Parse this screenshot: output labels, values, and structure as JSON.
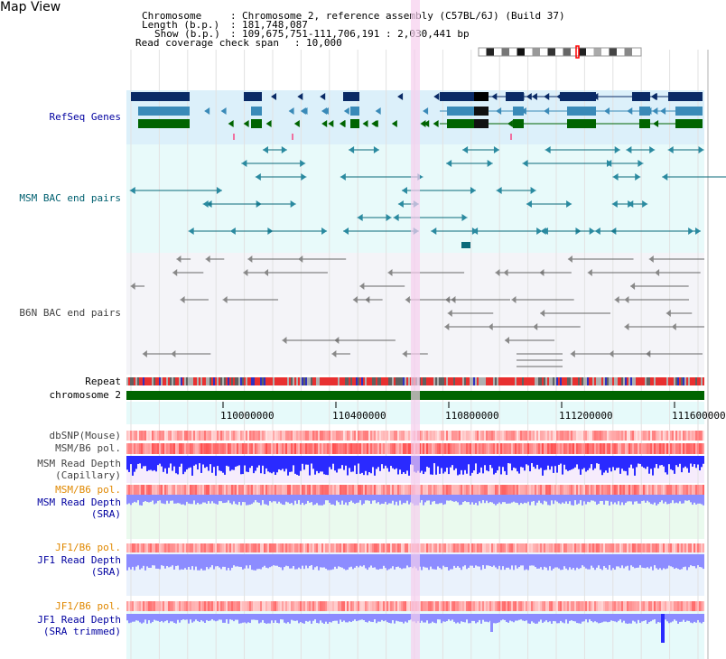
{
  "app": {
    "title": "Map View"
  },
  "header": {
    "chromosome_label": "Chromosome",
    "chromosome_value": "Chromosome 2, reference assembly (C57BL/6J) (Build 37)",
    "length_label": "Length (b.p.)",
    "length_value": "181,748,087",
    "show_label": "Show (b.p.)",
    "show_value": "109,675,751-111,706,191 : 2,030,441 bp",
    "coverage_label": "Read coverage check span",
    "coverage_value": "10,000"
  },
  "tracks": {
    "refseq": "RefSeq Genes",
    "msm_bac": "MSM BAC end pairs",
    "b6n_bac": "B6N BAC end pairs",
    "repeat": "Repeat",
    "chromosome": "chromosome 2",
    "dbsnp": "dbSNP(Mouse)",
    "msm_b6_pol_1": "MSM/B6 pol.",
    "msm_depth_cap_1": "MSM Read Depth",
    "msm_depth_cap_2": "(Capillary)",
    "msm_b6_pol_2": "MSM/B6 pol.",
    "msm_depth_sra_1": "MSM Read Depth",
    "msm_depth_sra_2": "(SRA)",
    "jf1_b6_pol_1": "JF1/B6 pol.",
    "jf1_depth_sra_1": "JF1 Read Depth",
    "jf1_depth_sra_2": "(SRA)",
    "jf1_b6_pol_2": "JF1/B6 pol.",
    "jf1_depth_trim_1": "JF1 Read Depth",
    "jf1_depth_trim_2": "(SRA trimmed)"
  },
  "axis": {
    "ticks": [
      "110000000",
      "110400000",
      "110800000",
      "111200000",
      "111600000"
    ]
  },
  "colors": {
    "refseq_bg": "#dcf0fa",
    "msm_bg": "#e8fafa",
    "b6n_bg": "#f4f4f8",
    "highlight": "#f6cfee",
    "chromosome": "#006400",
    "depth_blue": "#2a2aff",
    "sra_blue": "#8c8cff"
  }
}
